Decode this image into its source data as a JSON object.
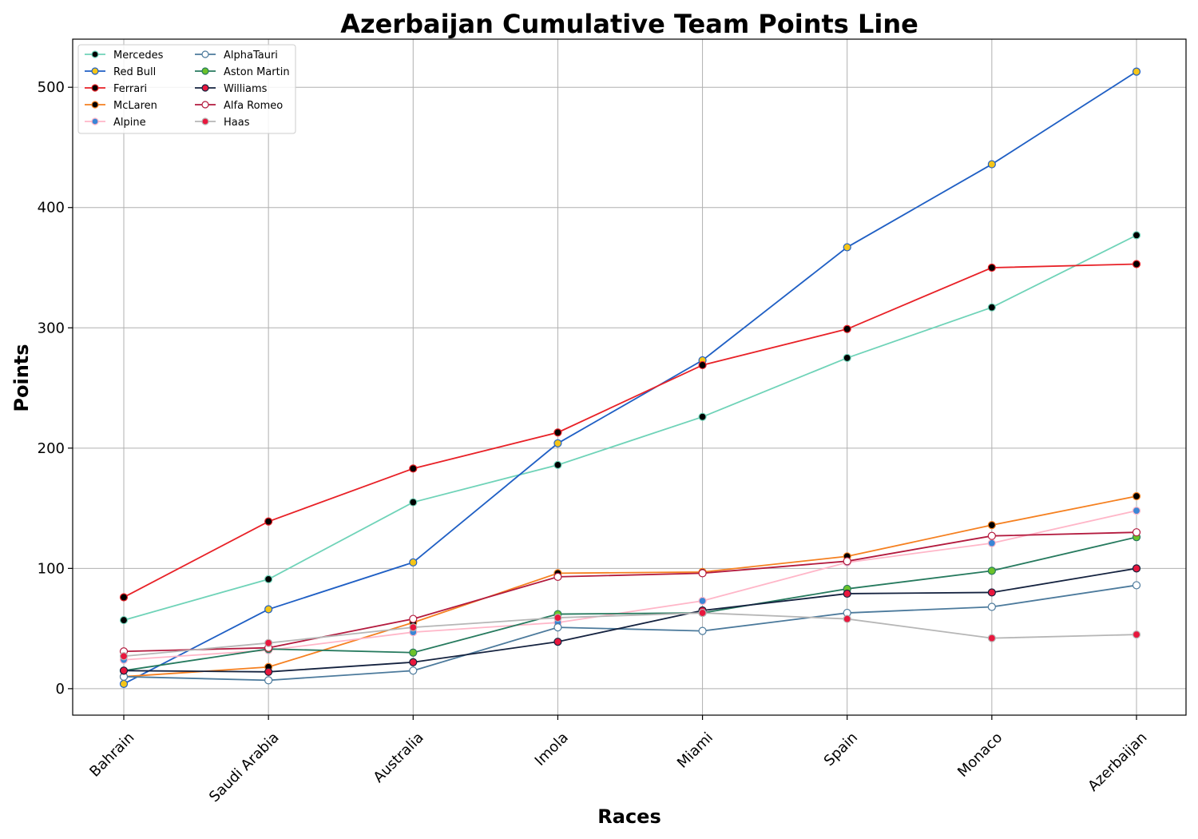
{
  "chart_data": {
    "type": "line",
    "title": "Azerbaijan Cumulative Team Points Line",
    "xlabel": "Races",
    "ylabel": "Points",
    "categories": [
      "Bahrain",
      "Saudi Arabia",
      "Australia",
      "Imola",
      "Miami",
      "Spain",
      "Monaco",
      "Azerbaijan"
    ],
    "ylim": [
      -22,
      540
    ],
    "yticks": [
      0,
      100,
      200,
      300,
      400,
      500
    ],
    "grid": true,
    "legend_position": "top-left",
    "legend_columns": 2,
    "series": [
      {
        "name": "Mercedes",
        "color": "#6fd3b8",
        "marker_fill": "#000000",
        "values": [
          57,
          91,
          155,
          186,
          226,
          275,
          317,
          377
        ]
      },
      {
        "name": "Red Bull",
        "color": "#1f5fc4",
        "marker_fill": "#f5c518",
        "values": [
          4,
          66,
          105,
          204,
          273,
          367,
          436,
          513
        ]
      },
      {
        "name": "Ferrari",
        "color": "#e82127",
        "marker_fill": "#000000",
        "values": [
          76,
          139,
          183,
          213,
          269,
          299,
          350,
          353
        ]
      },
      {
        "name": "McLaren",
        "color": "#f58020",
        "marker_fill": "#000000",
        "values": [
          10,
          18,
          55,
          96,
          97,
          110,
          136,
          160
        ]
      },
      {
        "name": "Alpine",
        "color": "#ffb6c8",
        "marker_fill": "#3a86d6",
        "values": [
          24,
          32,
          47,
          55,
          73,
          105,
          121,
          148
        ]
      },
      {
        "name": "AlphaTauri",
        "color": "#4c7a9c",
        "marker_fill": "#ffffff",
        "values": [
          10,
          7,
          15,
          51,
          48,
          63,
          68,
          86
        ]
      },
      {
        "name": "Aston Martin",
        "color": "#267a5e",
        "marker_fill": "#6cc22a",
        "values": [
          15,
          33,
          30,
          62,
          63,
          83,
          98,
          126
        ]
      },
      {
        "name": "Williams",
        "color": "#14223f",
        "marker_fill": "#e8173d",
        "values": [
          15,
          14,
          22,
          39,
          65,
          79,
          80,
          100
        ]
      },
      {
        "name": "Alfa Romeo",
        "color": "#b31a3e",
        "marker_fill": "#ffffff",
        "values": [
          31,
          34,
          58,
          93,
          96,
          106,
          127,
          130
        ]
      },
      {
        "name": "Haas",
        "color": "#b6b6b6",
        "marker_fill": "#e8173d",
        "values": [
          27,
          38,
          51,
          59,
          63,
          58,
          42,
          45
        ]
      }
    ]
  }
}
